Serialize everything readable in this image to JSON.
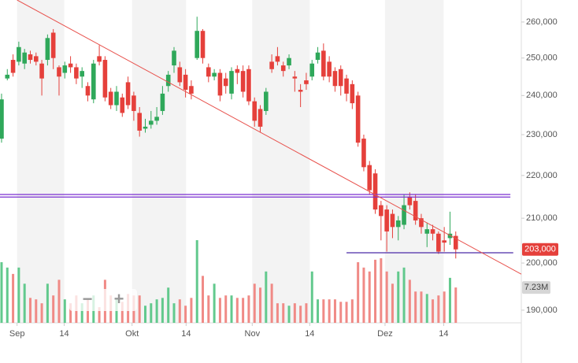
{
  "chart_data": {
    "type": "candlestick",
    "log_scale": true,
    "ylim": [
      187400,
      266300
    ],
    "yticks": [
      {
        "value": 190000,
        "label": "190,000"
      },
      {
        "value": 200000,
        "label": "200,000"
      },
      {
        "value": 210000,
        "label": "210,000"
      },
      {
        "value": 220000,
        "label": "220,000"
      },
      {
        "value": 230000,
        "label": "230,000"
      },
      {
        "value": 240000,
        "label": "240,000"
      },
      {
        "value": 250000,
        "label": "250,000"
      },
      {
        "value": 260000,
        "label": "260,000"
      }
    ],
    "xlim": [
      -0.27,
      90.4
    ],
    "xticks": [
      {
        "value": 2.7,
        "label": "Sep"
      },
      {
        "value": 10.9,
        "label": "14"
      },
      {
        "value": 22.7,
        "label": "Okt"
      },
      {
        "value": 32.1,
        "label": "14"
      },
      {
        "value": 43.6,
        "label": "Nov"
      },
      {
        "value": 53.6,
        "label": "14"
      },
      {
        "value": 66.7,
        "label": "Dez"
      },
      {
        "value": 76.9,
        "label": "14"
      }
    ],
    "up_color": "#2fa85a",
    "down_color": "#e5403b",
    "open": [
      229000,
      244500,
      249500,
      249000,
      248500,
      251000,
      250500,
      248500,
      249500,
      257000,
      247500,
      246000,
      248500,
      247500,
      245000,
      242500,
      239000,
      250500,
      249500,
      241000,
      237500,
      239500,
      243500,
      240000,
      235500,
      231500,
      232500,
      233500,
      236000,
      242500,
      248000,
      247500,
      245500,
      242500,
      250000,
      257500,
      247500,
      245000,
      246000,
      244500,
      240500,
      247000,
      246500,
      247000,
      238500,
      236500,
      236000,
      249000,
      250500,
      248000,
      248000,
      245000,
      241500,
      244000,
      245000,
      249500,
      252000,
      249000,
      246500,
      247000,
      244500,
      243000,
      240000,
      229000,
      222500,
      220500,
      213000,
      212000,
      211000,
      208000,
      208500,
      215000,
      214000,
      210000,
      206500,
      207500,
      206500,
      205000,
      205500,
      206000
    ],
    "high": [
      240500,
      247000,
      251000,
      254500,
      252500,
      252000,
      251500,
      249500,
      256500,
      258000,
      248000,
      249000,
      250500,
      248500,
      247500,
      243500,
      249500,
      253500,
      250500,
      242000,
      242500,
      240500,
      245000,
      241000,
      237000,
      234000,
      236000,
      237000,
      242500,
      246500,
      253000,
      249000,
      247000,
      244000,
      261500,
      258000,
      248500,
      247000,
      247000,
      246000,
      247500,
      248000,
      248000,
      248000,
      239500,
      237500,
      242000,
      251000,
      253000,
      249000,
      251000,
      246500,
      243000,
      246000,
      249500,
      253000,
      254000,
      250500,
      247500,
      248000,
      245500,
      244000,
      241000,
      230000,
      223500,
      221500,
      214000,
      213000,
      212000,
      210500,
      215500,
      216000,
      215500,
      211000,
      209000,
      208500,
      207000,
      208000,
      211500,
      207000
    ],
    "low": [
      228000,
      244000,
      245000,
      248000,
      247000,
      248500,
      248000,
      240000,
      248000,
      247000,
      240000,
      244500,
      246000,
      243000,
      242000,
      238500,
      238000,
      248000,
      238500,
      236500,
      236000,
      234500,
      236500,
      233500,
      229500,
      230500,
      231500,
      232500,
      235000,
      241000,
      246000,
      242500,
      239500,
      239000,
      249500,
      248500,
      243500,
      244000,
      238500,
      240500,
      239000,
      243000,
      239500,
      237500,
      232000,
      230500,
      235000,
      246000,
      248000,
      245000,
      247000,
      241000,
      237000,
      241500,
      244000,
      248500,
      244000,
      243500,
      241000,
      240000,
      238500,
      236500,
      227000,
      221000,
      215500,
      211000,
      205000,
      202500,
      205500,
      205000,
      207500,
      212000,
      208500,
      206500,
      203500,
      205000,
      202000,
      202500,
      204000,
      201000
    ],
    "close": [
      239000,
      245500,
      246000,
      253000,
      251500,
      249500,
      249000,
      244500,
      255500,
      250000,
      245000,
      248000,
      247500,
      244500,
      246500,
      240000,
      248500,
      249000,
      239500,
      237500,
      241000,
      235500,
      237500,
      236000,
      231000,
      232000,
      233500,
      234500,
      240500,
      245500,
      252000,
      243500,
      241500,
      240500,
      257500,
      250000,
      245000,
      246000,
      240000,
      242500,
      246500,
      246000,
      241000,
      238500,
      233500,
      232000,
      241000,
      247000,
      249000,
      246500,
      250000,
      244500,
      241000,
      243000,
      248500,
      251500,
      245000,
      245000,
      242500,
      242500,
      240500,
      238000,
      228000,
      222000,
      216500,
      212000,
      210500,
      207000,
      208000,
      209500,
      213000,
      213000,
      209500,
      208000,
      207500,
      206500,
      202500,
      204500,
      206500,
      203000
    ],
    "volume": [
      12.4,
      11.3,
      10.0,
      11.3,
      8.0,
      5.1,
      4.8,
      4.0,
      8.0,
      5.6,
      8.8,
      4.8,
      4.0,
      5.6,
      4.0,
      4.8,
      5.6,
      3.2,
      8.8,
      5.6,
      4.8,
      4.3,
      5.9,
      5.6,
      5.6,
      3.5,
      4.0,
      4.8,
      5.1,
      7.2,
      4.0,
      4.8,
      3.5,
      5.1,
      16.9,
      9.6,
      5.6,
      8.0,
      5.1,
      5.6,
      5.6,
      5.1,
      5.1,
      5.6,
      8.0,
      7.2,
      10.5,
      8.0,
      4.0,
      4.0,
      3.5,
      4.0,
      3.5,
      4.0,
      10.5,
      4.8,
      4.8,
      4.8,
      4.8,
      4.3,
      4.3,
      4.8,
      12.4,
      11.3,
      10.5,
      12.9,
      13.2,
      10.5,
      8.0,
      10.5,
      11.3,
      8.8,
      6.4,
      6.4,
      5.9,
      4.8,
      5.6,
      6.4,
      9.2,
      7.23
    ],
    "y2lim": [
      0,
      66
    ],
    "last_price": {
      "value": 203000,
      "label": "203,000"
    },
    "last_volume": {
      "value": 7.23,
      "label": "7.23M"
    },
    "trendline": {
      "x": [
        2.7,
        90.4
      ],
      "y": [
        266300,
        197600
      ],
      "color": "#e8534e"
    },
    "hlines": [
      {
        "x": [
          -0.27,
          88.5
        ],
        "y": 215500,
        "color": "#7a2fd0"
      },
      {
        "x": [
          -0.27,
          88.5
        ],
        "y": 214900,
        "color": "#7a2fd0"
      },
      {
        "x": [
          60,
          89
        ],
        "y": 202250,
        "color": "#4b2aa8"
      }
    ],
    "controls": [
      "−",
      "+"
    ]
  }
}
